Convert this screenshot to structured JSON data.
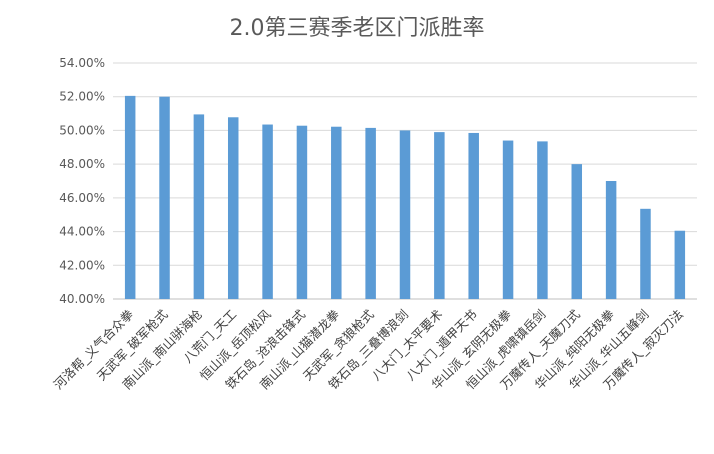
{
  "chart_data": {
    "type": "bar",
    "title": "2.0第三赛季老区门派胜率",
    "xlabel": "",
    "ylabel": "",
    "ylim": [
      0.4,
      0.54
    ],
    "yticks": [
      "54.00%",
      "52.00%",
      "50.00%",
      "48.00%",
      "46.00%",
      "44.00%",
      "42.00%",
      "40.00%"
    ],
    "grid": true,
    "legend": "none",
    "bar_color": "#5B9BD5",
    "categories": [
      "河洛帮_义气合众拳",
      "天武军_破军枪式",
      "南山派_南山骈海枪",
      "八荒门_天工",
      "恒山派_岳顶松风",
      "铁石岛_沧浪击锋式",
      "南山派_山猫潜龙拳",
      "天武军_贪狼枪式",
      "铁石岛_三叠博浪剑",
      "八大门_太平要术",
      "八大门_遁甲天书",
      "华山派_玄阴无极拳",
      "恒山派_虎啸镇岳剑",
      "万魔传人_天魔刀式",
      "华山派_纯阳无极拳",
      "华山派_华山五峰剑",
      "万魔传人_寂灭刀法"
    ],
    "values": [
      0.5205,
      0.52,
      0.5095,
      0.5078,
      0.5035,
      0.5028,
      0.5022,
      0.5015,
      0.5,
      0.499,
      0.4985,
      0.494,
      0.4935,
      0.48,
      0.47,
      0.4535,
      0.4405
    ]
  }
}
